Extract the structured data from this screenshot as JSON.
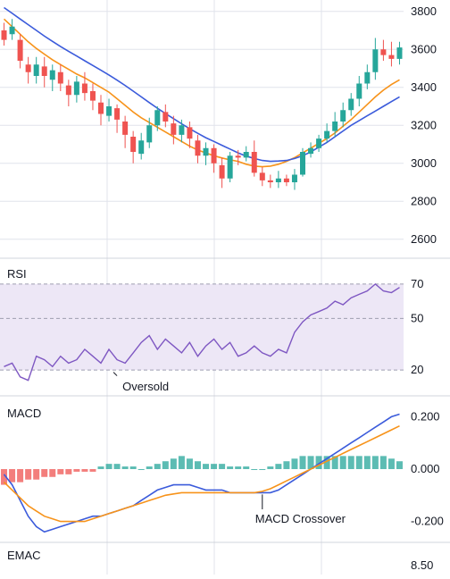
{
  "colors": {
    "up": "#26a69a",
    "down": "#ef5350",
    "ema_fast": "#f7931a",
    "ema_slow": "#3b5bdb",
    "rsi_line": "#7e57c2",
    "rsi_band": "#ede7f6",
    "hist_pos": "#26a69a",
    "hist_neg": "#ef5350",
    "grid": "#e0e3eb",
    "text": "#131722"
  },
  "chart_data": [
    {
      "type": "candlestick",
      "panel": "price",
      "y_ticks": [
        "3800",
        "3600",
        "3400",
        "3200",
        "3000",
        "2800",
        "2600"
      ],
      "ylim": [
        2500,
        3860
      ],
      "grid": true,
      "series": [
        {
          "name": "",
          "kind": "ema_fast",
          "values": [
            3760,
            3720,
            3680,
            3640,
            3605,
            3575,
            3545,
            3520,
            3495,
            3470,
            3450,
            3425,
            3400,
            3375,
            3340,
            3305,
            3270,
            3240,
            3215,
            3190,
            3165,
            3140,
            3115,
            3090,
            3070,
            3055,
            3040,
            3028,
            3018,
            3010,
            2995,
            2985,
            2982,
            2985,
            2995,
            3010,
            3030,
            3055,
            3080,
            3105,
            3130,
            3160,
            3195,
            3230,
            3270,
            3310,
            3350,
            3385,
            3415,
            3440
          ]
        },
        {
          "name": "",
          "kind": "ema_slow",
          "values": [
            3820,
            3790,
            3760,
            3730,
            3700,
            3670,
            3642,
            3615,
            3590,
            3565,
            3540,
            3515,
            3490,
            3465,
            3438,
            3410,
            3380,
            3350,
            3320,
            3290,
            3262,
            3235,
            3208,
            3182,
            3158,
            3135,
            3115,
            3095,
            3075,
            3055,
            3038,
            3025,
            3015,
            3010,
            3012,
            3015,
            3025,
            3040,
            3060,
            3085,
            3110,
            3140,
            3170,
            3200,
            3225,
            3250,
            3275,
            3300,
            3325,
            3350
          ]
        }
      ],
      "candles": [
        {
          "o": 3700,
          "c": 3650,
          "h": 3740,
          "l": 3620
        },
        {
          "o": 3680,
          "c": 3720,
          "h": 3760,
          "l": 3650
        },
        {
          "o": 3650,
          "c": 3540,
          "h": 3680,
          "l": 3500
        },
        {
          "o": 3520,
          "c": 3480,
          "h": 3560,
          "l": 3420
        },
        {
          "o": 3460,
          "c": 3520,
          "h": 3560,
          "l": 3420
        },
        {
          "o": 3510,
          "c": 3460,
          "h": 3560,
          "l": 3400
        },
        {
          "o": 3440,
          "c": 3490,
          "h": 3520,
          "l": 3380
        },
        {
          "o": 3480,
          "c": 3420,
          "h": 3520,
          "l": 3380
        },
        {
          "o": 3410,
          "c": 3360,
          "h": 3440,
          "l": 3300
        },
        {
          "o": 3360,
          "c": 3430,
          "h": 3460,
          "l": 3320
        },
        {
          "o": 3420,
          "c": 3370,
          "h": 3480,
          "l": 3330
        },
        {
          "o": 3380,
          "c": 3330,
          "h": 3420,
          "l": 3280
        },
        {
          "o": 3320,
          "c": 3260,
          "h": 3360,
          "l": 3200
        },
        {
          "o": 3250,
          "c": 3300,
          "h": 3340,
          "l": 3220
        },
        {
          "o": 3290,
          "c": 3230,
          "h": 3310,
          "l": 3160
        },
        {
          "o": 3220,
          "c": 3150,
          "h": 3250,
          "l": 3080
        },
        {
          "o": 3140,
          "c": 3060,
          "h": 3170,
          "l": 3000
        },
        {
          "o": 3050,
          "c": 3120,
          "h": 3160,
          "l": 3020
        },
        {
          "o": 3110,
          "c": 3200,
          "h": 3240,
          "l": 3080
        },
        {
          "o": 3200,
          "c": 3280,
          "h": 3300,
          "l": 3170
        },
        {
          "o": 3270,
          "c": 3220,
          "h": 3310,
          "l": 3190
        },
        {
          "o": 3210,
          "c": 3150,
          "h": 3250,
          "l": 3100
        },
        {
          "o": 3150,
          "c": 3200,
          "h": 3230,
          "l": 3110
        },
        {
          "o": 3190,
          "c": 3130,
          "h": 3220,
          "l": 3080
        },
        {
          "o": 3120,
          "c": 3040,
          "h": 3150,
          "l": 3000
        },
        {
          "o": 3040,
          "c": 3080,
          "h": 3110,
          "l": 2990
        },
        {
          "o": 3080,
          "c": 3000,
          "h": 3100,
          "l": 2950
        },
        {
          "o": 2990,
          "c": 2920,
          "h": 3030,
          "l": 2870
        },
        {
          "o": 2920,
          "c": 3040,
          "h": 3060,
          "l": 2900
        },
        {
          "o": 3040,
          "c": 3030,
          "h": 3070,
          "l": 2990
        },
        {
          "o": 3030,
          "c": 3060,
          "h": 3090,
          "l": 3010
        },
        {
          "o": 3060,
          "c": 2950,
          "h": 3120,
          "l": 2930
        },
        {
          "o": 2950,
          "c": 2910,
          "h": 2980,
          "l": 2880
        },
        {
          "o": 2910,
          "c": 2900,
          "h": 2940,
          "l": 2870
        },
        {
          "o": 2900,
          "c": 2920,
          "h": 2960,
          "l": 2870
        },
        {
          "o": 2920,
          "c": 2900,
          "h": 2940,
          "l": 2880
        },
        {
          "o": 2900,
          "c": 2940,
          "h": 2970,
          "l": 2860
        },
        {
          "o": 2940,
          "c": 3060,
          "h": 3080,
          "l": 2930
        },
        {
          "o": 3050,
          "c": 3080,
          "h": 3110,
          "l": 3030
        },
        {
          "o": 3080,
          "c": 3130,
          "h": 3150,
          "l": 3060
        },
        {
          "o": 3130,
          "c": 3170,
          "h": 3210,
          "l": 3110
        },
        {
          "o": 3170,
          "c": 3220,
          "h": 3270,
          "l": 3140
        },
        {
          "o": 3220,
          "c": 3280,
          "h": 3320,
          "l": 3190
        },
        {
          "o": 3280,
          "c": 3340,
          "h": 3370,
          "l": 3250
        },
        {
          "o": 3340,
          "c": 3420,
          "h": 3460,
          "l": 3300
        },
        {
          "o": 3420,
          "c": 3480,
          "h": 3520,
          "l": 3390
        },
        {
          "o": 3480,
          "c": 3600,
          "h": 3660,
          "l": 3440
        },
        {
          "o": 3600,
          "c": 3570,
          "h": 3650,
          "l": 3540
        },
        {
          "o": 3570,
          "c": 3550,
          "h": 3640,
          "l": 3510
        },
        {
          "o": 3550,
          "c": 3610,
          "h": 3640,
          "l": 3520
        }
      ]
    },
    {
      "type": "line",
      "panel": "rsi",
      "title": "RSI",
      "y_ticks": [
        "70",
        "50",
        "20"
      ],
      "ylim": [
        5,
        85
      ],
      "band": [
        20,
        70
      ],
      "guides": [
        20,
        50,
        70
      ],
      "values": [
        22,
        24,
        16,
        14,
        28,
        26,
        22,
        28,
        24,
        26,
        32,
        28,
        24,
        32,
        26,
        24,
        30,
        36,
        40,
        32,
        38,
        34,
        30,
        36,
        28,
        34,
        38,
        32,
        36,
        28,
        30,
        34,
        30,
        28,
        32,
        30,
        42,
        48,
        52,
        54,
        56,
        60,
        58,
        62,
        64,
        66,
        70,
        66,
        65,
        68
      ],
      "annotations": [
        {
          "text": "Oversold",
          "index": 14
        }
      ]
    },
    {
      "type": "bar_line",
      "panel": "macd",
      "title": "MACD",
      "y_ticks": [
        "0.200",
        "0.000",
        "-0.200"
      ],
      "ylim": [
        -0.28,
        0.28
      ],
      "histogram": [
        -0.06,
        -0.05,
        -0.05,
        -0.04,
        -0.04,
        -0.03,
        -0.03,
        -0.02,
        -0.02,
        -0.01,
        -0.01,
        -0.01,
        0.01,
        0.02,
        0.02,
        0.01,
        0.01,
        0.0,
        0.01,
        0.02,
        0.03,
        0.04,
        0.05,
        0.04,
        0.03,
        0.02,
        0.02,
        0.02,
        0.01,
        0.01,
        0.01,
        0.0,
        0.0,
        0.01,
        0.02,
        0.03,
        0.04,
        0.05,
        0.05,
        0.05,
        0.05,
        0.05,
        0.05,
        0.05,
        0.05,
        0.05,
        0.05,
        0.05,
        0.04,
        0.03
      ],
      "series": [
        {
          "name": "",
          "kind": "macd",
          "values": [
            -0.02,
            -0.06,
            -0.12,
            -0.18,
            -0.22,
            -0.24,
            -0.23,
            -0.22,
            -0.21,
            -0.2,
            -0.19,
            -0.18,
            -0.18,
            -0.17,
            -0.16,
            -0.15,
            -0.14,
            -0.12,
            -0.1,
            -0.08,
            -0.07,
            -0.06,
            -0.06,
            -0.06,
            -0.07,
            -0.08,
            -0.08,
            -0.08,
            -0.09,
            -0.09,
            -0.09,
            -0.09,
            -0.09,
            -0.09,
            -0.08,
            -0.06,
            -0.04,
            -0.02,
            0.0,
            0.02,
            0.04,
            0.06,
            0.08,
            0.1,
            0.12,
            0.14,
            0.16,
            0.18,
            0.2,
            0.21
          ]
        },
        {
          "name": "",
          "kind": "signal",
          "values": [
            -0.05,
            -0.08,
            -0.11,
            -0.14,
            -0.16,
            -0.18,
            -0.19,
            -0.2,
            -0.2,
            -0.2,
            -0.2,
            -0.19,
            -0.18,
            -0.17,
            -0.16,
            -0.15,
            -0.14,
            -0.13,
            -0.12,
            -0.11,
            -0.1,
            -0.095,
            -0.09,
            -0.09,
            -0.09,
            -0.09,
            -0.09,
            -0.09,
            -0.09,
            -0.09,
            -0.09,
            -0.09,
            -0.085,
            -0.075,
            -0.06,
            -0.045,
            -0.03,
            -0.015,
            0.0,
            0.015,
            0.03,
            0.045,
            0.06,
            0.075,
            0.09,
            0.105,
            0.12,
            0.135,
            0.15,
            0.165
          ]
        }
      ],
      "annotations": [
        {
          "text": "MACD Crossover",
          "index": 32
        }
      ]
    },
    {
      "type": "line",
      "panel": "emac",
      "title": "EMAC",
      "y_ticks": [
        "8.50"
      ]
    }
  ]
}
